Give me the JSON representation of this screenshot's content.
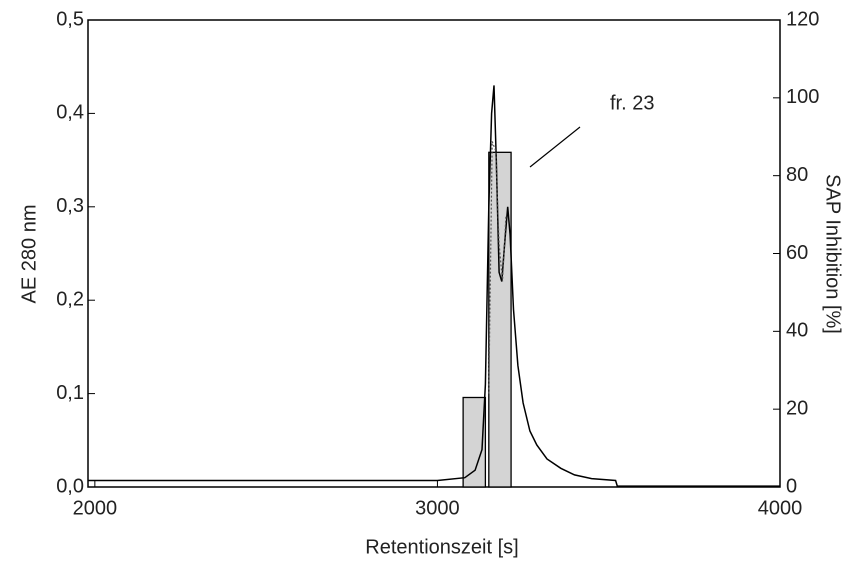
{
  "chart_data": {
    "type": "line",
    "xlabel": "Retentionszeit [s]",
    "ylabel": "AE 280 nm",
    "y2label": "SAP Inhibition [%]",
    "annotation": "fr. 23",
    "xlim": [
      1980,
      4000
    ],
    "xticks": [
      2000,
      3000,
      4000
    ],
    "ylim": [
      0,
      0.5
    ],
    "yticks": [
      {
        "value": 0,
        "label": "0,0"
      },
      {
        "value": 0.1,
        "label": "0,1"
      },
      {
        "value": 0.2,
        "label": "0,2"
      },
      {
        "value": 0.3,
        "label": "0,3"
      },
      {
        "value": 0.4,
        "label": "0,4"
      },
      {
        "value": 0.5,
        "label": "0,5"
      }
    ],
    "y2lim": [
      0,
      120
    ],
    "y2ticks": [
      0,
      20,
      40,
      60,
      80,
      100,
      120
    ],
    "bars": {
      "axis": "y2",
      "color": "#d4d4d4",
      "start": [
        3075,
        3150
      ],
      "end": [
        3140,
        3215
      ],
      "values": [
        23,
        86
      ]
    },
    "series": [
      {
        "color": "#000000",
        "style": "solid",
        "x": [
          1980,
          3000,
          3080,
          3110,
          3130,
          3140,
          3150,
          3158,
          3165,
          3172,
          3180,
          3188,
          3196,
          3205,
          3212,
          3222,
          3235,
          3250,
          3270,
          3290,
          3320,
          3360,
          3400,
          3450,
          3520,
          3525,
          4000
        ],
        "values": [
          0.007,
          0.007,
          0.01,
          0.018,
          0.04,
          0.11,
          0.3,
          0.4,
          0.43,
          0.35,
          0.23,
          0.22,
          0.26,
          0.3,
          0.27,
          0.19,
          0.13,
          0.09,
          0.06,
          0.045,
          0.03,
          0.02,
          0.013,
          0.009,
          0.007,
          0.001,
          0.001
        ]
      },
      {
        "color": "#555555",
        "style": "dotted",
        "x": [
          3150,
          3160,
          3170,
          3180,
          3190,
          3200
        ],
        "values": [
          0.1,
          0.37,
          0.36,
          0.26,
          0.22,
          0.29
        ]
      }
    ]
  }
}
